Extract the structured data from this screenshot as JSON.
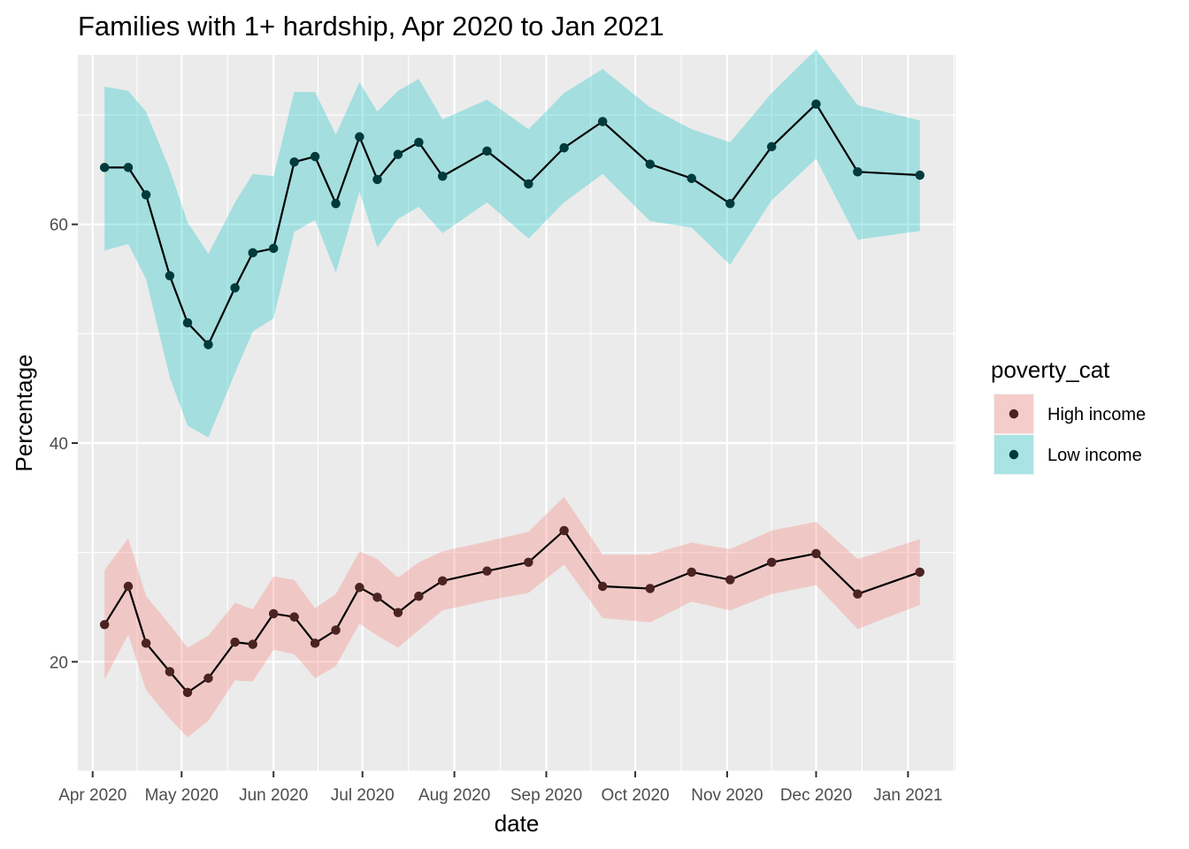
{
  "chart_data": {
    "type": "line",
    "title": "Families with 1+ hardship, Apr 2020 to Jan 2021",
    "xlabel": "date",
    "ylabel": "Percentage",
    "x_ticks": [
      "Apr 2020",
      "May 2020",
      "Jun 2020",
      "Jul 2020",
      "Aug 2020",
      "Sep 2020",
      "Oct 2020",
      "Nov 2020",
      "Dec 2020",
      "Jan 2021"
    ],
    "x_tick_dates": [
      "2020-04-01",
      "2020-05-01",
      "2020-06-01",
      "2020-07-01",
      "2020-08-01",
      "2020-09-01",
      "2020-10-01",
      "2020-11-01",
      "2020-12-01",
      "2021-01-01"
    ],
    "xlim": [
      "2020-03-27",
      "2021-01-17"
    ],
    "y_ticks": [
      20,
      40,
      60
    ],
    "ylim": [
      10,
      75.5
    ],
    "grid": true,
    "legend": {
      "title": "poverty_cat",
      "placement": "right"
    },
    "series": [
      {
        "name": "High income",
        "color": "#F8766D",
        "points": [
          {
            "date": "2020-04-05",
            "y": 23.4,
            "lo": 18.4,
            "hi": 28.4
          },
          {
            "date": "2020-04-13",
            "y": 26.9,
            "lo": 22.5,
            "hi": 31.3
          },
          {
            "date": "2020-04-19",
            "y": 21.7,
            "lo": 17.4,
            "hi": 26.0
          },
          {
            "date": "2020-04-27",
            "y": 19.1,
            "lo": 14.8,
            "hi": 23.4
          },
          {
            "date": "2020-05-03",
            "y": 17.2,
            "lo": 13.1,
            "hi": 21.3
          },
          {
            "date": "2020-05-10",
            "y": 18.5,
            "lo": 14.6,
            "hi": 22.4
          },
          {
            "date": "2020-05-19",
            "y": 21.8,
            "lo": 18.3,
            "hi": 25.4
          },
          {
            "date": "2020-05-25",
            "y": 21.6,
            "lo": 18.2,
            "hi": 24.8
          },
          {
            "date": "2020-06-01",
            "y": 24.4,
            "lo": 21.1,
            "hi": 27.8
          },
          {
            "date": "2020-06-08",
            "y": 24.1,
            "lo": 20.7,
            "hi": 27.5
          },
          {
            "date": "2020-06-15",
            "y": 21.7,
            "lo": 18.5,
            "hi": 24.9
          },
          {
            "date": "2020-06-22",
            "y": 22.9,
            "lo": 19.6,
            "hi": 26.2
          },
          {
            "date": "2020-06-30",
            "y": 26.8,
            "lo": 23.5,
            "hi": 30.1
          },
          {
            "date": "2020-07-06",
            "y": 25.9,
            "lo": 22.4,
            "hi": 29.4
          },
          {
            "date": "2020-07-13",
            "y": 24.5,
            "lo": 21.3,
            "hi": 27.7
          },
          {
            "date": "2020-07-20",
            "y": 26.0,
            "lo": 22.9,
            "hi": 29.1
          },
          {
            "date": "2020-07-28",
            "y": 27.4,
            "lo": 24.7,
            "hi": 30.1
          },
          {
            "date": "2020-08-12",
            "y": 28.3,
            "lo": 25.6,
            "hi": 31.0
          },
          {
            "date": "2020-08-26",
            "y": 29.1,
            "lo": 26.3,
            "hi": 31.9
          },
          {
            "date": "2020-09-07",
            "y": 32.0,
            "lo": 28.9,
            "hi": 35.1
          },
          {
            "date": "2020-09-20",
            "y": 26.9,
            "lo": 24.0,
            "hi": 29.8
          },
          {
            "date": "2020-10-06",
            "y": 26.7,
            "lo": 23.6,
            "hi": 29.8
          },
          {
            "date": "2020-10-20",
            "y": 28.2,
            "lo": 25.5,
            "hi": 30.9
          },
          {
            "date": "2020-11-02",
            "y": 27.5,
            "lo": 24.7,
            "hi": 30.3
          },
          {
            "date": "2020-11-16",
            "y": 29.1,
            "lo": 26.2,
            "hi": 32.0
          },
          {
            "date": "2020-12-01",
            "y": 29.9,
            "lo": 27.0,
            "hi": 32.8
          },
          {
            "date": "2020-12-15",
            "y": 26.2,
            "lo": 23.0,
            "hi": 29.4
          },
          {
            "date": "2021-01-05",
            "y": 28.2,
            "lo": 25.2,
            "hi": 31.2
          }
        ]
      },
      {
        "name": "Low income",
        "color": "#00BFC4",
        "points": [
          {
            "date": "2020-04-05",
            "y": 65.2,
            "lo": 57.6,
            "hi": 72.6
          },
          {
            "date": "2020-04-13",
            "y": 65.2,
            "lo": 58.2,
            "hi": 72.2
          },
          {
            "date": "2020-04-19",
            "y": 62.7,
            "lo": 55.0,
            "hi": 70.3
          },
          {
            "date": "2020-04-27",
            "y": 55.3,
            "lo": 46.0,
            "hi": 65.0
          },
          {
            "date": "2020-05-03",
            "y": 51.0,
            "lo": 41.6,
            "hi": 60.2
          },
          {
            "date": "2020-05-10",
            "y": 49.0,
            "lo": 40.5,
            "hi": 57.3
          },
          {
            "date": "2020-05-19",
            "y": 54.2,
            "lo": 46.4,
            "hi": 62.0
          },
          {
            "date": "2020-05-25",
            "y": 57.4,
            "lo": 50.2,
            "hi": 64.6
          },
          {
            "date": "2020-06-01",
            "y": 57.8,
            "lo": 51.4,
            "hi": 64.4
          },
          {
            "date": "2020-06-08",
            "y": 65.7,
            "lo": 59.3,
            "hi": 72.1
          },
          {
            "date": "2020-06-15",
            "y": 66.2,
            "lo": 60.4,
            "hi": 72.1
          },
          {
            "date": "2020-06-22",
            "y": 61.9,
            "lo": 55.6,
            "hi": 68.2
          },
          {
            "date": "2020-06-30",
            "y": 68.0,
            "lo": 63.0,
            "hi": 73.0
          },
          {
            "date": "2020-07-06",
            "y": 64.1,
            "lo": 57.9,
            "hi": 70.3
          },
          {
            "date": "2020-07-13",
            "y": 66.4,
            "lo": 60.5,
            "hi": 72.2
          },
          {
            "date": "2020-07-20",
            "y": 67.5,
            "lo": 61.6,
            "hi": 73.3
          },
          {
            "date": "2020-07-28",
            "y": 64.4,
            "lo": 59.2,
            "hi": 69.6
          },
          {
            "date": "2020-08-12",
            "y": 66.7,
            "lo": 62.0,
            "hi": 71.4
          },
          {
            "date": "2020-08-26",
            "y": 63.7,
            "lo": 58.7,
            "hi": 68.7
          },
          {
            "date": "2020-09-07",
            "y": 67.0,
            "lo": 62.0,
            "hi": 72.0
          },
          {
            "date": "2020-09-20",
            "y": 69.4,
            "lo": 64.6,
            "hi": 74.2
          },
          {
            "date": "2020-10-06",
            "y": 65.5,
            "lo": 60.3,
            "hi": 70.7
          },
          {
            "date": "2020-10-20",
            "y": 64.2,
            "lo": 59.7,
            "hi": 68.7
          },
          {
            "date": "2020-11-02",
            "y": 61.9,
            "lo": 56.3,
            "hi": 67.5
          },
          {
            "date": "2020-11-16",
            "y": 67.1,
            "lo": 62.2,
            "hi": 72.0
          },
          {
            "date": "2020-12-01",
            "y": 71.0,
            "lo": 66.0,
            "hi": 76.0
          },
          {
            "date": "2020-12-15",
            "y": 64.8,
            "lo": 58.6,
            "hi": 70.9
          },
          {
            "date": "2021-01-05",
            "y": 64.5,
            "lo": 59.4,
            "hi": 69.5
          }
        ]
      }
    ]
  }
}
